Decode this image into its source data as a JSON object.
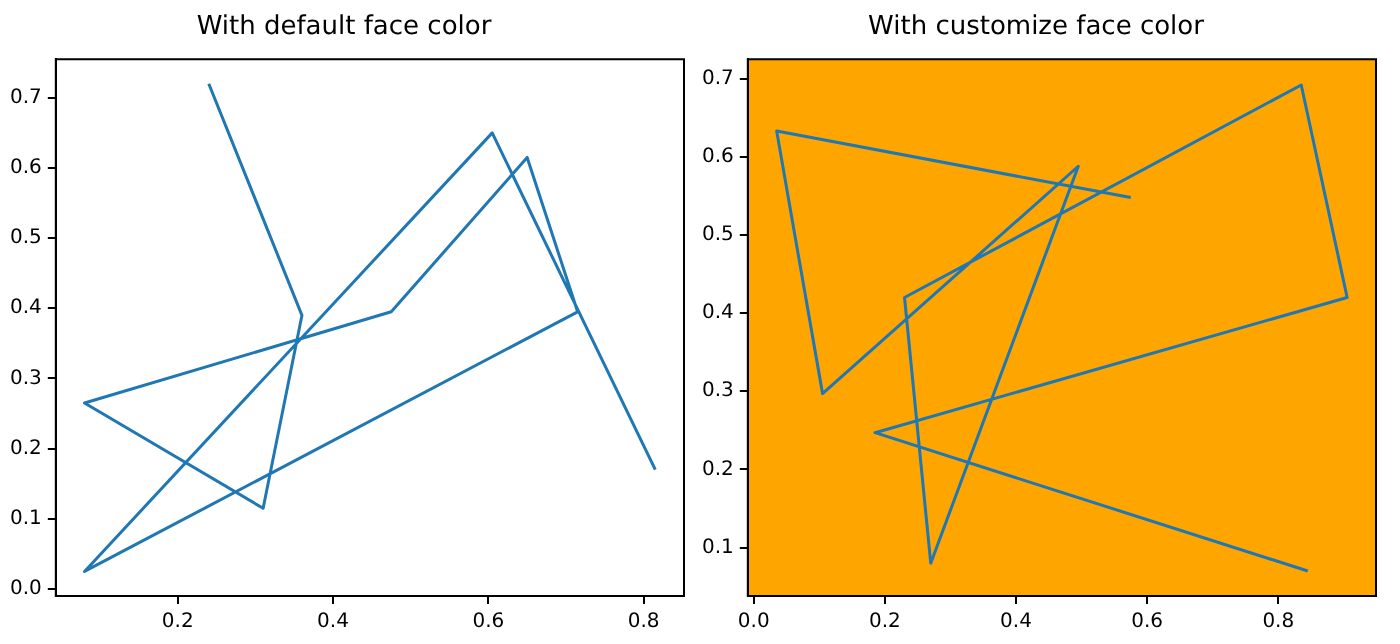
{
  "chart_data": [
    {
      "type": "line",
      "title": "With default face color",
      "series": [
        {
          "color": "#1f77b4",
          "x": [
            0.24,
            0.36,
            0.31,
            0.08,
            0.475,
            0.65,
            0.715,
            0.08,
            0.605,
            0.815
          ],
          "values": [
            0.72,
            0.39,
            0.115,
            0.265,
            0.395,
            0.615,
            0.395,
            0.025,
            0.65,
            0.17
          ]
        }
      ],
      "xlim": [
        0.043,
        0.852
      ],
      "xticks": [
        0.2,
        0.4,
        0.6,
        0.8
      ],
      "ylim": [
        -0.01,
        0.755
      ],
      "yticks": [
        {
          "value": 0,
          "label": "0.0"
        },
        0.1,
        0.2,
        0.3,
        0.4,
        0.5,
        0.6,
        0.7
      ],
      "grid": false,
      "legend": false
    },
    {
      "type": "line",
      "title": "With customize face color",
      "series": [
        {
          "color": "#1f77b4",
          "x": [
            0.575,
            0.035,
            0.105,
            0.495,
            0.27,
            0.23,
            0.835,
            0.905,
            0.185,
            0.845
          ],
          "values": [
            0.548,
            0.633,
            0.297,
            0.588,
            0.08,
            0.42,
            0.692,
            0.42,
            0.247,
            0.07
          ]
        }
      ],
      "xlim": [
        -0.009,
        0.949
      ],
      "xticks": [
        {
          "value": 0,
          "label": "0.0"
        },
        0.2,
        0.4,
        0.6,
        0.8
      ],
      "ylim": [
        0.038,
        0.725
      ],
      "yticks": [
        0.1,
        0.2,
        0.3,
        0.4,
        0.5,
        0.6,
        0.7
      ],
      "grid": false,
      "legend": false
    }
  ]
}
